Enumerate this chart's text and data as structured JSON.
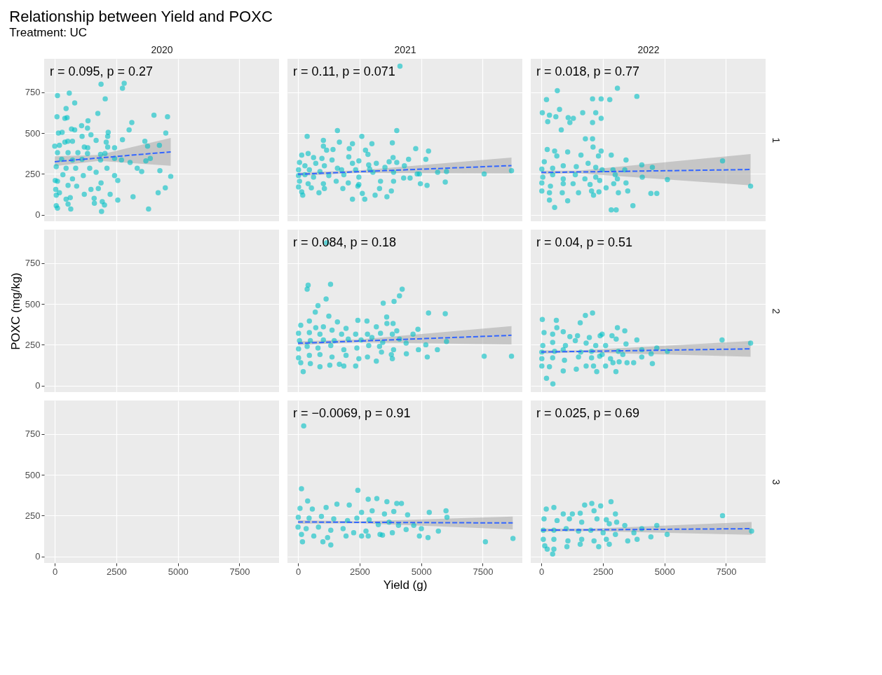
{
  "chart_data": [
    {
      "type": "scatter",
      "title": "Relationship between Yield and POXC",
      "subtitle": "Treatment: UC",
      "x2label": "2020",
      "annotations": [
        "r = 0.095, p = 0.27"
      ],
      "xlim": [
        -430,
        9110
      ],
      "ylim": [
        -40,
        955
      ],
      "xticks": [
        0,
        2500,
        5000,
        7500
      ],
      "yticks": [
        0,
        250,
        500,
        750
      ],
      "grid": true,
      "marker": "circle",
      "tick_labels": "y",
      "series": [
        {
          "type": "scatter",
          "color": "#00bfc4",
          "x": [
            110,
            590,
            810,
            460,
            1880,
            2050,
            2750,
            2820,
            1750,
            90,
            410,
            500,
            4030,
            4580,
            3130,
            1350,
            3020,
            2170,
            1090,
            1330,
            680,
            810,
            150,
            300,
            4510,
            1110,
            1470,
            2150,
            2750,
            530,
            720,
            1680,
            410,
            2090,
            3660,
            0,
            190,
            1200,
            1340,
            2150,
            2430,
            3770,
            4250,
            110,
            540,
            940,
            1330,
            1860,
            2040,
            280,
            720,
            1110,
            1860,
            2430,
            2710,
            3060,
            3700,
            3880,
            60,
            460,
            850,
            1420,
            1680,
            2120,
            3350,
            3530,
            4270,
            4710,
            330,
            1160,
            2430,
            720,
            2560,
            20,
            110,
            540,
            890,
            1880,
            1770,
            1470,
            4490,
            40,
            60,
            190,
            1200,
            2250,
            4200,
            3180,
            460,
            630,
            1600,
            1610,
            1930,
            2020,
            2560,
            540,
            60,
            110,
            650,
            1900,
            3810
          ],
          "values": [
            730,
            745,
            685,
            650,
            800,
            710,
            775,
            805,
            620,
            600,
            590,
            595,
            610,
            600,
            565,
            575,
            520,
            505,
            545,
            530,
            525,
            520,
            500,
            505,
            500,
            480,
            490,
            480,
            460,
            450,
            450,
            455,
            445,
            445,
            450,
            420,
            425,
            415,
            410,
            415,
            410,
            420,
            425,
            380,
            380,
            380,
            375,
            370,
            375,
            340,
            335,
            340,
            335,
            345,
            335,
            320,
            330,
            345,
            295,
            285,
            285,
            285,
            260,
            285,
            285,
            265,
            270,
            235,
            245,
            240,
            240,
            220,
            210,
            210,
            205,
            180,
            175,
            195,
            160,
            155,
            165,
            155,
            120,
            135,
            125,
            125,
            135,
            110,
            95,
            105,
            100,
            70,
            80,
            60,
            90,
            65,
            55,
            40,
            35,
            20,
            35
          ]
        },
        {
          "type": "line",
          "color": "#3366ff",
          "line_style": "dashed",
          "marker": "none",
          "x": [
            0,
            1800,
            4710
          ],
          "values": [
            325,
            348,
            385
          ],
          "lower": [
            298,
            330,
            300
          ],
          "upper": [
            358,
            366,
            470
          ]
        }
      ]
    },
    {
      "type": "scatter",
      "x2label": "2021",
      "annotations": [
        "r = 0.11, p = 0.071"
      ],
      "xlim": [
        -430,
        9110
      ],
      "ylim": [
        -40,
        955
      ],
      "xticks": [
        0,
        2500,
        5000,
        7500
      ],
      "yticks": [
        0,
        250,
        500,
        750
      ],
      "grid": true,
      "marker": "circle",
      "tick_labels": false,
      "series": [
        {
          "type": "scatter",
          "color": "#00bfc4",
          "x": [
            4140,
            1600,
            4010,
            370,
            2590,
            1030,
            1680,
            2210,
            3000,
            3830,
            1030,
            1160,
            1420,
            2080,
            2740,
            2840,
            4780,
            5300,
            150,
            410,
            630,
            970,
            1380,
            2060,
            2870,
            3860,
            4490,
            5190,
            60,
            280,
            720,
            1070,
            1600,
            2210,
            2470,
            3180,
            3700,
            4010,
            4320,
            20,
            460,
            890,
            1770,
            2340,
            2910,
            3530,
            20,
            280,
            630,
            1250,
            1860,
            2470,
            3040,
            3880,
            4840,
            5670,
            6030,
            7560,
            8670,
            60,
            410,
            1030,
            1550,
            2040,
            2470,
            3350,
            3880,
            4290,
            4550,
            4930,
            20,
            540,
            1070,
            1820,
            2430,
            3310,
            3790,
            4970,
            5240,
            5980,
            150,
            190,
            850,
            2610,
            3130,
            3610,
            2210,
            2710
          ],
          "values": [
            910,
            515,
            515,
            480,
            480,
            455,
            445,
            435,
            435,
            440,
            420,
            395,
            400,
            405,
            395,
            370,
            405,
            390,
            365,
            375,
            350,
            345,
            335,
            355,
            305,
            350,
            340,
            340,
            320,
            300,
            315,
            300,
            285,
            315,
            330,
            315,
            325,
            320,
            300,
            275,
            275,
            265,
            275,
            275,
            280,
            290,
            240,
            245,
            230,
            240,
            245,
            230,
            260,
            260,
            250,
            260,
            265,
            250,
            270,
            205,
            190,
            190,
            205,
            195,
            185,
            205,
            205,
            225,
            225,
            250,
            170,
            165,
            160,
            160,
            175,
            160,
            145,
            190,
            180,
            200,
            140,
            120,
            135,
            130,
            120,
            110,
            95,
            95
          ]
        },
        {
          "type": "line",
          "color": "#3366ff",
          "line_style": "dashed",
          "marker": "none",
          "x": [
            0,
            2500,
            8670
          ],
          "values": [
            248,
            264,
            301
          ],
          "lower": [
            238,
            256,
            253
          ],
          "upper": [
            258,
            272,
            350
          ]
        }
      ]
    },
    {
      "type": "scatter",
      "x2label": "2022",
      "y2label": "1",
      "annotations": [
        "r = 0.018, p = 0.77"
      ],
      "xlim": [
        -430,
        9110
      ],
      "ylim": [
        -40,
        955
      ],
      "xticks": [
        0,
        2500,
        5000,
        7500
      ],
      "yticks": [
        0,
        250,
        500,
        750
      ],
      "grid": true,
      "marker": "circle",
      "tick_labels": false,
      "series": [
        {
          "type": "scatter",
          "color": "#00bfc4",
          "x": [
            3090,
            650,
            3880,
            210,
            2080,
            2430,
            2780,
            740,
            40,
            1680,
            2210,
            330,
            590,
            1090,
            1300,
            260,
            1160,
            2080,
            2430,
            810,
            1790,
            2080,
            2100,
            240,
            540,
            1070,
            2430,
            120,
            630,
            1610,
            2320,
            2840,
            3440,
            4080,
            4510,
            7360,
            20,
            460,
            890,
            1420,
            1900,
            2210,
            2470,
            2910,
            3390,
            60,
            460,
            890,
            1380,
            1770,
            2210,
            3000,
            3090,
            4100,
            5120,
            20,
            370,
            890,
            1290,
            1980,
            2370,
            2630,
            2940,
            3440,
            20,
            330,
            850,
            1510,
            2040,
            2340,
            3130,
            3510,
            4450,
            4690,
            330,
            1070,
            2120,
            8500,
            540,
            3720,
            2840,
            3040
          ],
          "values": [
            775,
            760,
            725,
            705,
            710,
            710,
            705,
            645,
            625,
            625,
            625,
            610,
            600,
            595,
            590,
            570,
            565,
            565,
            590,
            520,
            465,
            465,
            415,
            400,
            390,
            385,
            390,
            325,
            360,
            365,
            360,
            365,
            335,
            305,
            290,
            330,
            280,
            285,
            300,
            295,
            315,
            290,
            275,
            275,
            275,
            230,
            245,
            220,
            245,
            220,
            230,
            245,
            220,
            230,
            215,
            195,
            175,
            190,
            190,
            185,
            210,
            165,
            190,
            195,
            145,
            135,
            135,
            135,
            145,
            140,
            135,
            145,
            130,
            130,
            90,
            85,
            120,
            175,
            45,
            55,
            30,
            30
          ]
        },
        {
          "type": "line",
          "color": "#3366ff",
          "line_style": "dashed",
          "marker": "none",
          "x": [
            0,
            1500,
            8500
          ],
          "values": [
            259,
            262,
            277
          ],
          "lower": [
            248,
            254,
            180
          ],
          "upper": [
            270,
            270,
            372
          ]
        }
      ]
    },
    {
      "type": "scatter",
      "ylabel": "POXC (mg/kg)",
      "xlim": [
        -430,
        9110
      ],
      "ylim": [
        -40,
        955
      ],
      "xticks": [
        0,
        2500,
        5000,
        7500
      ],
      "yticks": [
        0,
        250,
        500,
        750
      ],
      "grid": true,
      "tick_labels": "y"
    },
    {
      "type": "scatter",
      "annotations": [
        "r = 0.084, p = 0.18"
      ],
      "xlim": [
        -430,
        9110
      ],
      "ylim": [
        -40,
        955
      ],
      "xticks": [
        0,
        2500,
        5000,
        7500
      ],
      "yticks": [
        0,
        250,
        500,
        750
      ],
      "grid": true,
      "marker": "circle",
      "tick_labels": false,
      "series": [
        {
          "type": "scatter",
          "color": "#00bfc4",
          "x": [
            1160,
            410,
            370,
            1320,
            4230,
            4120,
            3900,
            1140,
            3460,
            810,
            700,
            1250,
            5300,
            5980,
            3600,
            110,
            460,
            720,
            1030,
            1600,
            1950,
            2430,
            2800,
            3180,
            3610,
            3860,
            20,
            460,
            890,
            1380,
            1770,
            2340,
            2820,
            3350,
            3830,
            4010,
            4670,
            4870,
            60,
            500,
            1030,
            1470,
            2040,
            2560,
            3000,
            3440,
            4120,
            6030,
            20,
            370,
            810,
            1330,
            1860,
            2390,
            2870,
            3310,
            3880,
            4390,
            5190,
            20,
            460,
            890,
            1380,
            1950,
            2470,
            2820,
            3390,
            3790,
            4400,
            4890,
            5660,
            5250,
            7560,
            8670,
            110,
            500,
            890,
            1290,
            1680,
            1860,
            2340,
            3180,
            3830,
            210
          ],
          "values": [
            875,
            615,
            590,
            620,
            590,
            550,
            515,
            530,
            505,
            490,
            450,
            425,
            445,
            440,
            420,
            370,
            395,
            355,
            360,
            390,
            350,
            400,
            395,
            360,
            380,
            380,
            320,
            325,
            315,
            340,
            315,
            315,
            315,
            320,
            315,
            335,
            315,
            345,
            275,
            275,
            280,
            275,
            285,
            280,
            295,
            265,
            285,
            270,
            225,
            240,
            230,
            245,
            220,
            230,
            245,
            240,
            220,
            260,
            250,
            170,
            185,
            190,
            175,
            185,
            165,
            175,
            205,
            190,
            195,
            220,
            220,
            175,
            180,
            180,
            140,
            135,
            115,
            125,
            130,
            120,
            120,
            150,
            165,
            85
          ]
        },
        {
          "type": "line",
          "color": "#3366ff",
          "line_style": "dashed",
          "marker": "none",
          "x": [
            0,
            2500,
            8670
          ],
          "values": [
            259,
            273,
            308
          ],
          "lower": [
            247,
            265,
            252
          ],
          "upper": [
            271,
            283,
            364
          ]
        }
      ]
    },
    {
      "type": "scatter",
      "y2label": "2",
      "annotations": [
        "r = 0.04, p = 0.51"
      ],
      "xlim": [
        -430,
        9110
      ],
      "ylim": [
        -40,
        955
      ],
      "xticks": [
        0,
        2500,
        5000,
        7500
      ],
      "yticks": [
        0,
        250,
        500,
        750
      ],
      "grid": true,
      "marker": "circle",
      "tick_labels": false,
      "series": [
        {
          "type": "scatter",
          "color": "#00bfc4",
          "x": [
            40,
            610,
            2080,
            1790,
            1580,
            3090,
            3390,
            630,
            2390,
            3880,
            7340,
            8500,
            110,
            460,
            890,
            1160,
            1470,
            1950,
            2470,
            2870,
            3040,
            60,
            460,
            980,
            1380,
            1820,
            2210,
            2610,
            3440,
            20,
            540,
            890,
            1600,
            2040,
            2470,
            3130,
            4080,
            4690,
            5120,
            20,
            460,
            940,
            1510,
            2040,
            2370,
            2810,
            3310,
            4080,
            4460,
            20,
            330,
            890,
            1420,
            1820,
            2120,
            2610,
            2910,
            3160,
            3480,
            3750,
            4510,
            2250,
            3030,
            210,
            470
          ],
          "values": [
            405,
            400,
            445,
            430,
            385,
            355,
            335,
            355,
            305,
            280,
            280,
            260,
            325,
            315,
            330,
            300,
            305,
            295,
            315,
            305,
            285,
            245,
            265,
            245,
            275,
            260,
            245,
            245,
            255,
            205,
            210,
            220,
            205,
            210,
            190,
            210,
            220,
            230,
            210,
            165,
            170,
            155,
            175,
            170,
            180,
            165,
            190,
            175,
            195,
            120,
            115,
            90,
            100,
            120,
            120,
            120,
            140,
            145,
            140,
            140,
            135,
            85,
            85,
            45,
            10
          ]
        },
        {
          "type": "line",
          "color": "#3366ff",
          "line_style": "dashed",
          "marker": "none",
          "x": [
            0,
            1500,
            8500
          ],
          "values": [
            206,
            209,
            225
          ],
          "lower": [
            196,
            203,
            177
          ],
          "upper": [
            216,
            215,
            273
          ]
        }
      ]
    },
    {
      "type": "scatter",
      "xlim": [
        -430,
        9110
      ],
      "ylim": [
        -40,
        955
      ],
      "xticks": [
        0,
        2500,
        5000,
        7500
      ],
      "yticks": [
        0,
        250,
        500,
        750
      ],
      "grid": true
    },
    {
      "type": "scatter",
      "xlabel": "Yield (g)",
      "annotations": [
        "r = −0.0069, p = 0.91"
      ],
      "xlim": [
        -430,
        9110
      ],
      "ylim": [
        -40,
        955
      ],
      "xticks": [
        0,
        2500,
        5000,
        7500
      ],
      "yticks": [
        0,
        250,
        500,
        750
      ],
      "grid": true,
      "marker": "circle",
      "tick_labels": "x",
      "series": [
        {
          "type": "scatter",
          "color": "#00bfc4",
          "x": [
            230,
            140,
            2430,
            2850,
            3200,
            3610,
            4010,
            4200,
            390,
            80,
            580,
            1140,
            1580,
            2080,
            2580,
            3010,
            3510,
            3890,
            4450,
            5330,
            6010,
            6050,
            10,
            450,
            950,
            1450,
            2010,
            2390,
            2890,
            3260,
            3700,
            4080,
            4700,
            5010,
            5700,
            0,
            330,
            830,
            1330,
            1830,
            2260,
            2760,
            3330,
            3830,
            4390,
            4930,
            5280,
            140,
            640,
            1200,
            1950,
            2580,
            2850,
            3430,
            180,
            1010,
            1330,
            7610,
            8730
          ],
          "values": [
            800,
            415,
            405,
            350,
            355,
            335,
            325,
            325,
            340,
            295,
            290,
            300,
            320,
            315,
            270,
            280,
            260,
            275,
            255,
            270,
            280,
            240,
            240,
            235,
            245,
            230,
            220,
            235,
            225,
            195,
            210,
            190,
            190,
            170,
            155,
            180,
            170,
            180,
            160,
            170,
            145,
            155,
            135,
            145,
            165,
            125,
            115,
            135,
            125,
            115,
            125,
            125,
            125,
            130,
            90,
            90,
            70,
            90,
            110
          ]
        },
        {
          "type": "line",
          "color": "#3366ff",
          "line_style": "dashed",
          "marker": "none",
          "x": [
            0,
            2500,
            8720
          ],
          "values": [
            211,
            209,
            205
          ],
          "lower": [
            200,
            203,
            166
          ],
          "upper": [
            222,
            215,
            244
          ]
        }
      ]
    },
    {
      "type": "scatter",
      "y2label": "3",
      "annotations": [
        "r = 0.025, p = 0.69"
      ],
      "xlim": [
        -430,
        9110
      ],
      "ylim": [
        -40,
        955
      ],
      "xticks": [
        0,
        2500,
        5000,
        7500
      ],
      "yticks": [
        0,
        250,
        500,
        750
      ],
      "grid": true,
      "marker": "circle",
      "tick_labels": "x",
      "series": [
        {
          "type": "scatter",
          "color": "#00bfc4",
          "x": [
            2830,
            1760,
            2050,
            2410,
            7360,
            8540,
            200,
            510,
            890,
            1260,
            1580,
            2140,
            3010,
            2640,
            3060,
            4690,
            110,
            640,
            1140,
            1640,
            2260,
            2760,
            3390,
            4080,
            5110,
            80,
            510,
            1010,
            1510,
            2010,
            2510,
            3010,
            3760,
            4450,
            80,
            510,
            1080,
            1640,
            2140,
            2640,
            3510,
            3890,
            140,
            510,
            1040,
            1580,
            2330,
            2760,
            460,
            240
          ],
          "values": [
            335,
            315,
            325,
            310,
            250,
            155,
            290,
            300,
            260,
            260,
            265,
            280,
            260,
            225,
            210,
            190,
            230,
            220,
            230,
            210,
            230,
            200,
            190,
            170,
            135,
            160,
            160,
            170,
            155,
            160,
            145,
            135,
            145,
            120,
            105,
            105,
            95,
            105,
            95,
            105,
            95,
            105,
            65,
            45,
            60,
            75,
            60,
            75,
            15,
            45
          ]
        },
        {
          "type": "line",
          "color": "#3366ff",
          "line_style": "dashed",
          "marker": "none",
          "x": [
            0,
            2000,
            8540
          ],
          "values": [
            161,
            163,
            170
          ],
          "lower": [
            151,
            155,
            133
          ],
          "upper": [
            171,
            170,
            211
          ]
        }
      ]
    }
  ]
}
